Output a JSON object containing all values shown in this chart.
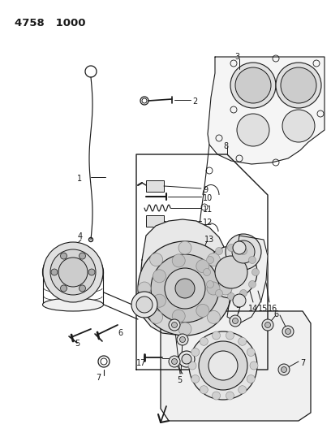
{
  "title1": "4758",
  "title2": "1000",
  "bg_color": "#ffffff",
  "line_color": "#1a1a1a",
  "figsize": [
    4.08,
    5.33
  ],
  "dpi": 100,
  "label_fontsize": 7.0,
  "title_fontsize": 9.5
}
